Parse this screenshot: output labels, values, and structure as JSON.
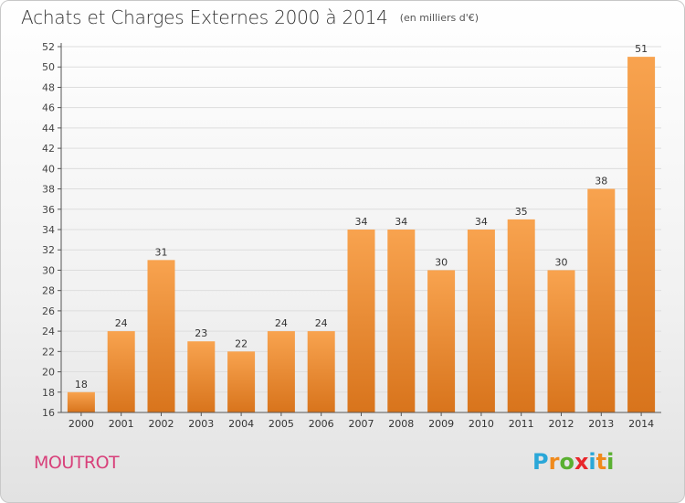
{
  "header": {
    "title": "Achats et Charges Externes 2000 à 2014",
    "subtitle": "(en milliers d'€)"
  },
  "commune": "MOUTROT",
  "logo": {
    "text": "Proxiti",
    "letters": [
      {
        "ch": "P",
        "color": "#2aa7d8"
      },
      {
        "ch": "r",
        "color": "#f08a1c"
      },
      {
        "ch": "o",
        "color": "#5ab031"
      },
      {
        "ch": "x",
        "color": "#e8262b"
      },
      {
        "ch": "i",
        "color": "#2aa7d8"
      },
      {
        "ch": "t",
        "color": "#f08a1c"
      },
      {
        "ch": "i",
        "color": "#5ab031"
      }
    ]
  },
  "colors": {
    "bar_top": "#f8a34f",
    "bar_bottom": "#d8741c",
    "axis": "#555555",
    "grid": "#dddddd",
    "commune": "#d8407a"
  },
  "chart_data": {
    "type": "bar",
    "categories": [
      "2000",
      "2001",
      "2002",
      "2003",
      "2004",
      "2005",
      "2006",
      "2007",
      "2008",
      "2009",
      "2010",
      "2011",
      "2012",
      "2013",
      "2014"
    ],
    "values": [
      18,
      24,
      31,
      23,
      22,
      24,
      24,
      34,
      34,
      30,
      34,
      35,
      30,
      38,
      51
    ],
    "ylim": [
      16,
      52
    ],
    "ytick_step": 2,
    "grid": true,
    "xlabel": "",
    "ylabel": ""
  }
}
